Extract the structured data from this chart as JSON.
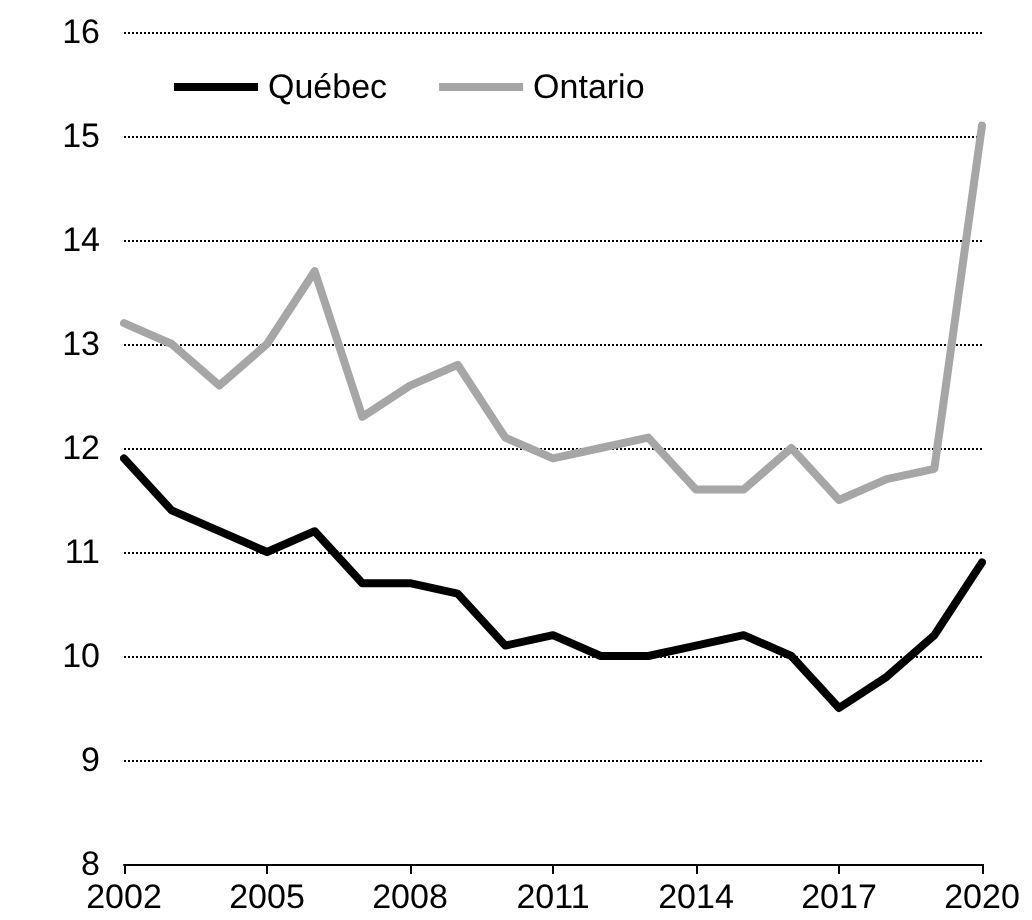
{
  "chart_data": {
    "type": "line",
    "x": [
      2002,
      2003,
      2004,
      2005,
      2006,
      2007,
      2008,
      2009,
      2010,
      2011,
      2012,
      2013,
      2014,
      2015,
      2016,
      2017,
      2018,
      2019,
      2020
    ],
    "series": [
      {
        "name": "Québec",
        "color": "#000000",
        "values": [
          11.9,
          11.4,
          11.2,
          11.0,
          11.2,
          10.7,
          10.7,
          10.6,
          10.1,
          10.2,
          10.0,
          10.0,
          10.1,
          10.2,
          10.0,
          9.5,
          9.8,
          10.2,
          10.9
        ]
      },
      {
        "name": "Ontario",
        "color": "#a6a6a6",
        "values": [
          13.2,
          13.0,
          12.6,
          13.0,
          13.7,
          12.3,
          12.6,
          12.8,
          12.1,
          11.9,
          12.0,
          12.1,
          11.6,
          11.6,
          12.0,
          11.5,
          11.7,
          11.8,
          15.1
        ]
      }
    ],
    "xlim": [
      2002,
      2020
    ],
    "xticks": [
      2002,
      2005,
      2008,
      2011,
      2014,
      2017,
      2020
    ],
    "ylim": [
      8,
      16
    ],
    "yticks": [
      8,
      9,
      10,
      11,
      12,
      13,
      14,
      15,
      16
    ],
    "grid": "y",
    "legend": "top left",
    "marker": "none",
    "line_style": "solid"
  }
}
